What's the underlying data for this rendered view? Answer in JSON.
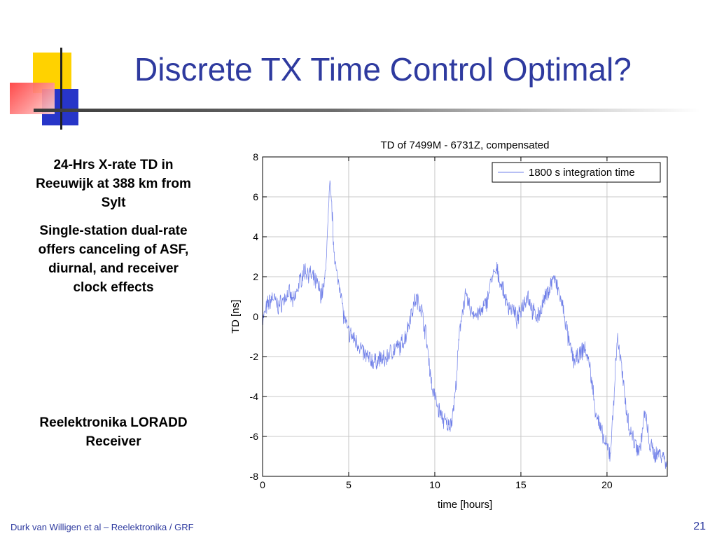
{
  "slide": {
    "title": "Discrete TX Time Control Optimal?",
    "left_text": {
      "heading": "24-Hrs X-rate TD in Reeuwijk at 388 km from Sylt",
      "description": "Single-station dual-rate offers canceling of ASF, diurnal, and receiver clock effects",
      "caption": "Reelektronika LORADD Receiver"
    },
    "footer_left": "Durk van Willigen et al – Reelektronika / GRF",
    "page_number": "21"
  },
  "colors": {
    "title": "#2E3A9F",
    "series": "#6f7fe8",
    "grid": "#c8c8c8"
  },
  "chart_data": {
    "type": "line",
    "title": "TD of 7499M - 6731Z, compensated",
    "xlabel": "time [hours]",
    "ylabel": "TD [ns]",
    "xlim": [
      0,
      23.5
    ],
    "ylim": [
      -8,
      8
    ],
    "xticks": [
      0,
      5,
      10,
      15,
      20
    ],
    "yticks": [
      -8,
      -6,
      -4,
      -2,
      0,
      2,
      4,
      6,
      8
    ],
    "grid": true,
    "legend_position": "top-right",
    "series": [
      {
        "name": "1800 s integration time",
        "x": [
          0,
          0.3,
          0.6,
          0.9,
          1.2,
          1.5,
          1.8,
          2.1,
          2.4,
          2.7,
          3.0,
          3.2,
          3.4,
          3.6,
          3.75,
          3.9,
          4.0,
          4.1,
          4.3,
          4.5,
          4.7,
          4.9,
          5.0,
          5.3,
          5.6,
          5.9,
          6.2,
          6.5,
          6.8,
          7.1,
          7.4,
          7.7,
          8.0,
          8.3,
          8.6,
          8.9,
          9.2,
          9.5,
          9.7,
          9.85,
          10.0,
          10.2,
          10.4,
          10.6,
          10.8,
          11.0,
          11.2,
          11.4,
          11.6,
          11.8,
          12.1,
          12.4,
          12.7,
          13.0,
          13.3,
          13.6,
          13.9,
          14.2,
          14.5,
          14.8,
          15.1,
          15.4,
          15.7,
          16.0,
          16.3,
          16.6,
          16.9,
          17.2,
          17.5,
          17.8,
          18.1,
          18.4,
          18.7,
          19.0,
          19.3,
          19.6,
          19.9,
          20.2,
          20.4,
          20.6,
          20.8,
          21.0,
          21.3,
          21.6,
          21.9,
          22.2,
          22.5,
          22.8,
          23.1,
          23.3,
          23.5
        ],
        "y": [
          -0.2,
          0.6,
          1.0,
          0.5,
          0.8,
          1.2,
          0.7,
          1.6,
          2.3,
          2.2,
          1.8,
          1.6,
          1.1,
          1.6,
          3.8,
          6.5,
          5.9,
          4.0,
          2.0,
          1.6,
          0.1,
          -0.6,
          -0.8,
          -1.1,
          -1.4,
          -1.9,
          -2.1,
          -2.3,
          -2.1,
          -2.2,
          -1.8,
          -1.6,
          -1.5,
          -1.0,
          0.1,
          0.9,
          0.5,
          -1.0,
          -2.5,
          -3.6,
          -4.0,
          -4.6,
          -5.0,
          -5.3,
          -5.5,
          -5.1,
          -3.8,
          -1.2,
          0.4,
          1.0,
          0.3,
          0.1,
          0.2,
          0.7,
          1.9,
          2.3,
          1.5,
          0.6,
          0.4,
          -0.2,
          0.6,
          1.1,
          0.2,
          0.0,
          0.7,
          1.3,
          2.0,
          1.2,
          0.2,
          -1.4,
          -2.2,
          -2.0,
          -1.5,
          -2.5,
          -4.5,
          -5.6,
          -6.4,
          -6.9,
          -4.0,
          -1.0,
          -2.2,
          -3.8,
          -5.6,
          -6.3,
          -6.7,
          -4.8,
          -6.5,
          -6.9,
          -6.8,
          -7.0,
          -7.6
        ]
      }
    ]
  }
}
